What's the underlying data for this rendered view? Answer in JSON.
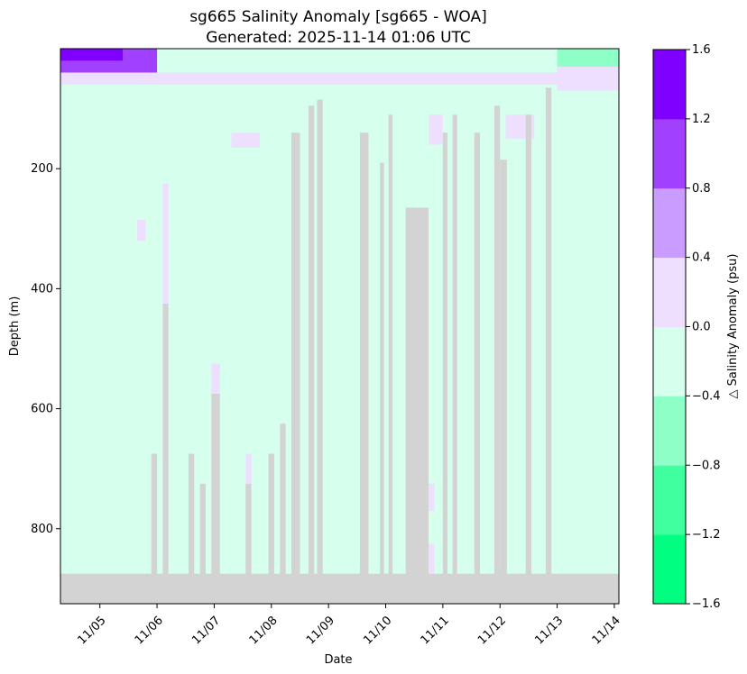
{
  "chart_data": {
    "type": "heatmap",
    "title_line1": "sg665 Salinity Anomaly [sg665 - WOA]",
    "title_line2": "Generated: 2025-11-14 01:06 UTC",
    "xlabel": "Date",
    "ylabel": "Depth (m)",
    "colorbar_label": "△ Salinity Anomaly (psu)",
    "x_ticks": [
      "11/05",
      "11/06",
      "11/07",
      "11/08",
      "11/09",
      "11/10",
      "11/11",
      "11/12",
      "11/13",
      "11/14"
    ],
    "x_range_days": [
      4.31,
      14.08
    ],
    "y_ticks": [
      200,
      400,
      600,
      800
    ],
    "y_range_m": [
      0,
      925
    ],
    "y_inverted": true,
    "colorbar_ticks": [
      "1.6",
      "1.2",
      "0.8",
      "0.4",
      "0.0",
      "−0.4",
      "−0.8",
      "−1.2",
      "−1.6"
    ],
    "levels": [
      -1.6,
      -1.2,
      -0.8,
      -0.4,
      0.0,
      0.4,
      0.8,
      1.2,
      1.6
    ],
    "level_colors": [
      "#00ff80",
      "#40ff9f",
      "#8fffc8",
      "#d6ffee",
      "#eedfff",
      "#ca9cff",
      "#a140ff",
      "#8000ff"
    ],
    "nodata_color": "#d3d3d3",
    "data_max_depth_m": 875,
    "background_anomaly_band": "-0.4 to 0.0",
    "surface_layer": [
      {
        "from_day": 4.31,
        "to_day": 5.4,
        "depth_m": [
          0,
          20
        ],
        "value_band": "1.2 to 1.6"
      },
      {
        "from_day": 4.31,
        "to_day": 6.0,
        "depth_m": [
          0,
          40
        ],
        "value_band": "0.8 to 1.2"
      },
      {
        "from_day": 4.31,
        "to_day": 13.0,
        "depth_m": [
          40,
          60
        ],
        "value_band": "0.0 to 0.4"
      },
      {
        "from_day": 13.0,
        "to_day": 14.08,
        "depth_m": [
          0,
          30
        ],
        "value_band": "-0.8 to -0.4"
      },
      {
        "from_day": 13.0,
        "to_day": 14.08,
        "depth_m": [
          30,
          70
        ],
        "value_band": "0.0 to 0.4"
      }
    ],
    "nodata_gaps": [
      {
        "from_day": 5.9,
        "to_day": 6.0,
        "below_depth_m": 675
      },
      {
        "from_day": 6.1,
        "to_day": 6.2,
        "below_depth_m": 425
      },
      {
        "from_day": 6.55,
        "to_day": 6.65,
        "below_depth_m": 675
      },
      {
        "from_day": 6.75,
        "to_day": 6.85,
        "below_depth_m": 725
      },
      {
        "from_day": 6.95,
        "to_day": 7.1,
        "below_depth_m": 575
      },
      {
        "from_day": 7.55,
        "to_day": 7.65,
        "below_depth_m": 725
      },
      {
        "from_day": 7.95,
        "to_day": 8.05,
        "below_depth_m": 675
      },
      {
        "from_day": 8.15,
        "to_day": 8.25,
        "below_depth_m": 625
      },
      {
        "from_day": 8.35,
        "to_day": 8.5,
        "below_depth_m": 140
      },
      {
        "from_day": 8.65,
        "to_day": 8.75,
        "below_depth_m": 95
      },
      {
        "from_day": 8.8,
        "to_day": 8.9,
        "below_depth_m": 85
      },
      {
        "from_day": 9.55,
        "to_day": 9.7,
        "below_depth_m": 140
      },
      {
        "from_day": 9.9,
        "to_day": 9.97,
        "below_depth_m": 190
      },
      {
        "from_day": 10.05,
        "to_day": 10.12,
        "below_depth_m": 110
      },
      {
        "from_day": 10.35,
        "to_day": 10.75,
        "below_depth_m": 265
      },
      {
        "from_day": 11.0,
        "to_day": 11.08,
        "below_depth_m": 140
      },
      {
        "from_day": 11.17,
        "to_day": 11.25,
        "below_depth_m": 110
      },
      {
        "from_day": 11.55,
        "to_day": 11.65,
        "below_depth_m": 140
      },
      {
        "from_day": 11.9,
        "to_day": 12.0,
        "below_depth_m": 95
      },
      {
        "from_day": 12.0,
        "to_day": 12.12,
        "below_depth_m": 185
      },
      {
        "from_day": 12.45,
        "to_day": 12.55,
        "below_depth_m": 110
      },
      {
        "from_day": 12.8,
        "to_day": 12.9,
        "below_depth_m": 65
      }
    ],
    "positive_patches": [
      {
        "from_day": 6.1,
        "to_day": 6.2,
        "depth_m": [
          225,
          425
        ]
      },
      {
        "from_day": 6.95,
        "to_day": 7.1,
        "depth_m": [
          525,
          575
        ]
      },
      {
        "from_day": 7.55,
        "to_day": 7.65,
        "depth_m": [
          675,
          725
        ]
      },
      {
        "from_day": 7.3,
        "to_day": 7.8,
        "depth_m": [
          140,
          165
        ]
      },
      {
        "from_day": 10.75,
        "to_day": 10.85,
        "depth_m": [
          725,
          770
        ]
      },
      {
        "from_day": 10.75,
        "to_day": 10.85,
        "depth_m": [
          825,
          875
        ]
      },
      {
        "from_day": 10.75,
        "to_day": 11.0,
        "depth_m": [
          110,
          160
        ]
      },
      {
        "from_day": 12.1,
        "to_day": 12.6,
        "depth_m": [
          110,
          150
        ]
      },
      {
        "from_day": 5.65,
        "to_day": 5.8,
        "depth_m": [
          285,
          320
        ]
      }
    ]
  }
}
